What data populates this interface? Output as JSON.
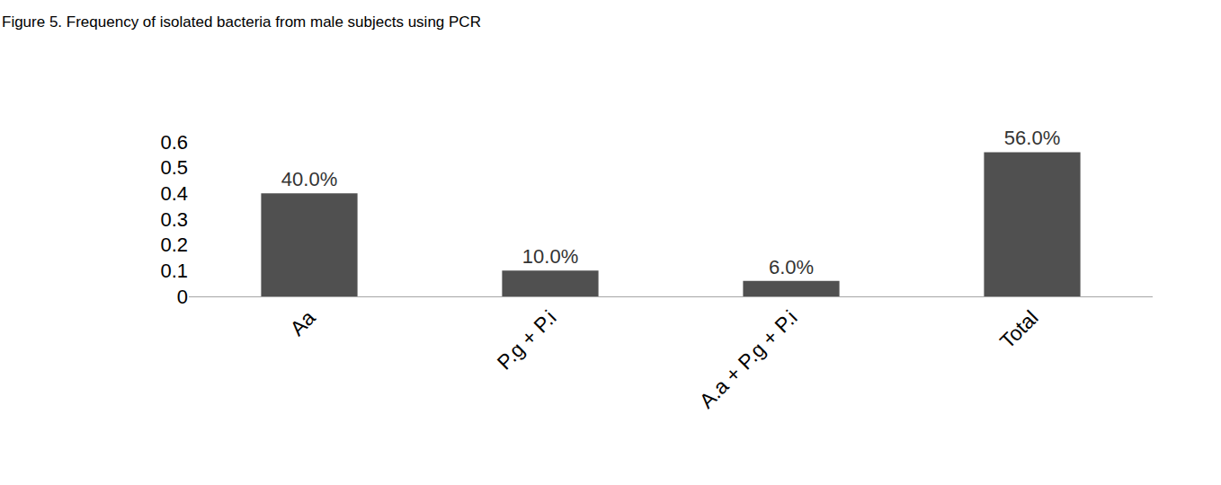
{
  "chart_data": {
    "type": "bar",
    "title": "Figure 5. Frequency of isolated bacteria from male subjects using PCR",
    "categories": [
      "Aa",
      "P.g + P.i",
      "A.a + P.g + P.i",
      "Total"
    ],
    "values": [
      0.4,
      0.1,
      0.06,
      0.56
    ],
    "value_labels": [
      "40.0%",
      "10.0%",
      "6.0%",
      "56.0%"
    ],
    "data_labels": true,
    "color": "#505050",
    "ylim": [
      0,
      0.6
    ],
    "yticks": [
      0,
      0.1,
      0.2,
      0.3,
      0.4,
      0.5,
      0.6
    ],
    "grid": false
  }
}
